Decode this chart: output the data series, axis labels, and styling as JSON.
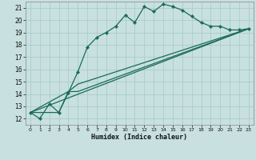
{
  "xlabel": "Humidex (Indice chaleur)",
  "bg_color": "#c8e0e0",
  "grid_color": "#aacccc",
  "line_color": "#1a6b5a",
  "xlim": [
    -0.5,
    23.5
  ],
  "ylim": [
    11.5,
    21.5
  ],
  "xticks": [
    0,
    1,
    2,
    3,
    4,
    5,
    6,
    7,
    8,
    9,
    10,
    11,
    12,
    13,
    14,
    15,
    16,
    17,
    18,
    19,
    20,
    21,
    22,
    23
  ],
  "yticks": [
    12,
    13,
    14,
    15,
    16,
    17,
    18,
    19,
    20,
    21
  ],
  "xtick_labels": [
    "0",
    "1",
    "2",
    "3",
    "4",
    "5",
    "6",
    "7",
    "8",
    "9",
    "10",
    "11",
    "12",
    "13",
    "14",
    "15",
    "16",
    "17",
    "18",
    "19",
    "20",
    "21",
    "22",
    "23"
  ],
  "ytick_labels": [
    "12",
    "13",
    "14",
    "15",
    "16",
    "17",
    "18",
    "19",
    "20",
    "21"
  ],
  "series1_x": [
    0,
    1,
    2,
    3,
    4,
    5,
    6,
    7,
    8,
    9,
    10,
    11,
    12,
    13,
    14,
    15,
    16,
    17,
    18,
    19,
    20,
    21,
    22,
    23
  ],
  "series1_y": [
    12.5,
    12.0,
    13.2,
    12.5,
    14.1,
    15.8,
    17.8,
    18.6,
    19.0,
    19.5,
    20.4,
    19.8,
    21.1,
    20.7,
    21.3,
    21.1,
    20.8,
    20.3,
    19.8,
    19.5,
    19.5,
    19.2,
    19.2,
    19.3
  ],
  "series2_x": [
    0,
    23
  ],
  "series2_y": [
    12.5,
    19.3
  ],
  "series3_x": [
    0,
    4,
    5,
    23
  ],
  "series3_y": [
    12.5,
    14.2,
    14.2,
    19.3
  ],
  "series4_x": [
    0,
    3,
    4,
    5,
    23
  ],
  "series4_y": [
    12.5,
    12.5,
    14.2,
    14.8,
    19.3
  ]
}
